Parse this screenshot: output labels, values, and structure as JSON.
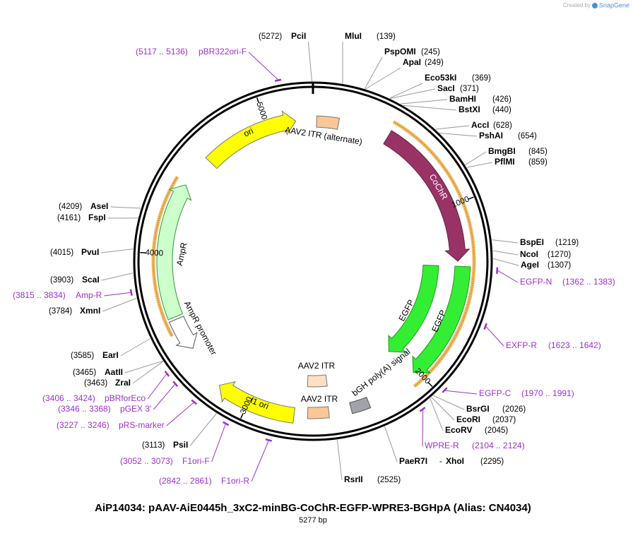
{
  "credit": {
    "prefix": "Created by",
    "brand": "SnapGene"
  },
  "title": "AiP14034: pAAV-AiE0445h_3xC2-minBG-CoChR-EGFP-WPRE3-BGHpA (Alias: CN4034)",
  "length": "5277 bp",
  "ticks": [
    1000,
    2000,
    3000,
    4000,
    5000
  ],
  "sites": [
    {
      "name": "PciI",
      "position": "(5272)"
    },
    {
      "name": "MluI",
      "position": "(139)"
    },
    {
      "name": "PspOMI",
      "position": "(245)"
    },
    {
      "name": "ApaI",
      "position": "(249)"
    },
    {
      "name": "Eco53kI",
      "position": "(369)"
    },
    {
      "name": "SacI",
      "position": "(371)"
    },
    {
      "name": "BamHI",
      "position": "(426)"
    },
    {
      "name": "BstXI",
      "position": "(440)"
    },
    {
      "name": "AccI",
      "position": "(628)"
    },
    {
      "name": "PshAI",
      "position": "(654)"
    },
    {
      "name": "BmgBI",
      "position": "(845)"
    },
    {
      "name": "PflMI",
      "position": "(859)"
    },
    {
      "name": "BspEI",
      "position": "(1219)"
    },
    {
      "name": "NcoI",
      "position": "(1270)"
    },
    {
      "name": "AgeI",
      "position": "(1307)"
    },
    {
      "name": "BsrGI",
      "position": "(2026)"
    },
    {
      "name": "EcoRI",
      "position": "(2037)"
    },
    {
      "name": "EcoRV",
      "position": "(2045)"
    },
    {
      "name": "PaeR7I",
      "separator": "-",
      "name2": "XhoI",
      "position": "(2295)"
    },
    {
      "name": "RsrII",
      "position": "(2525)"
    },
    {
      "name": "PsiI",
      "position": "(3113)"
    },
    {
      "name": "ZraI",
      "position": "(3463)"
    },
    {
      "name": "AatII",
      "position": "(3465)"
    },
    {
      "name": "EarI",
      "position": "(3585)"
    },
    {
      "name": "XmnI",
      "position": "(3784)"
    },
    {
      "name": "ScaI",
      "position": "(3903)"
    },
    {
      "name": "PvuI",
      "position": "(4015)"
    },
    {
      "name": "FspI",
      "position": "(4161)"
    },
    {
      "name": "AseI",
      "position": "(4209)"
    }
  ],
  "primers": [
    {
      "name": "pBR322ori-F",
      "range": "(5117 .. 5136)"
    },
    {
      "name": "EGFP-N",
      "range": "(1362 .. 1383)"
    },
    {
      "name": "EXFP-R",
      "range": "(1623 .. 1642)"
    },
    {
      "name": "EGFP-C",
      "range": "(1970 .. 1991)"
    },
    {
      "name": "WPRE-R",
      "range": "(2104 .. 2124)"
    },
    {
      "name": "F1ori-R",
      "range": "(2842 .. 2861)"
    },
    {
      "name": "F1ori-F",
      "range": "(3052 .. 3073)"
    },
    {
      "name": "pRS-marker",
      "range": "(3227 .. 3246)"
    },
    {
      "name": "pGEX 3'",
      "range": "(3346 .. 3368)"
    },
    {
      "name": "pBRforEco",
      "range": "(3406 .. 3424)"
    },
    {
      "name": "Amp-R",
      "range": "(3815 .. 3834)"
    }
  ],
  "features": [
    {
      "label": "ori"
    },
    {
      "label": "AAV2 ITR (alternate)"
    },
    {
      "label": "CoChR"
    },
    {
      "label": "AmpR"
    },
    {
      "label": "AmpR promoter"
    },
    {
      "label": "EGFP"
    },
    {
      "label": "EGFP"
    },
    {
      "label": "bGH poly(A) signal"
    },
    {
      "label": "AAV2 ITR"
    },
    {
      "label": "AAV2 ITR"
    },
    {
      "label": "f1 ori"
    }
  ]
}
